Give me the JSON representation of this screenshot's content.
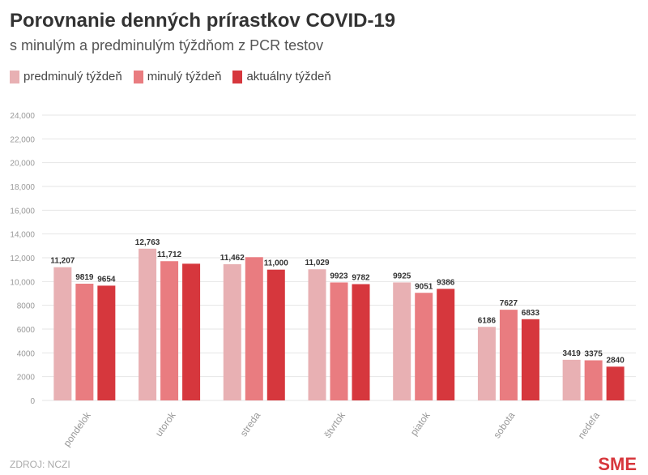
{
  "chart_data": {
    "type": "bar",
    "title": "Porovnanie denných prírastkov COVID-19",
    "subtitle": "s minulým a predminulým týždňom z PCR testov",
    "categories": [
      "pondelok",
      "utorok",
      "streda",
      "štvrtok",
      "piatok",
      "sobota",
      "nedeľa"
    ],
    "series": [
      {
        "name": "predminulý týždeň",
        "color": "#e8b0b3",
        "values": [
          11207,
          12763,
          11462,
          11029,
          9925,
          6186,
          3419
        ],
        "labels": [
          "11,207",
          "12,763",
          "11,462",
          "11,029",
          "9925",
          "6186",
          "3419"
        ]
      },
      {
        "name": "minulý týždeň",
        "color": "#e97c80",
        "values": [
          9819,
          11712,
          12050,
          9923,
          9051,
          7627,
          3375
        ],
        "labels": [
          "9819",
          "11,712",
          "",
          "9923",
          "9051",
          "7627",
          "3375"
        ]
      },
      {
        "name": "aktuálny týždeň",
        "color": "#d6373d",
        "values": [
          9654,
          11500,
          11000,
          9782,
          9386,
          6833,
          2840
        ],
        "labels": [
          "9654",
          "",
          "11,000",
          "9782",
          "9386",
          "6833",
          "2840"
        ]
      }
    ],
    "yticks": [
      "0",
      "2000",
      "4000",
      "6000",
      "8000",
      "10,000",
      "12,000",
      "14,000",
      "16,000",
      "18,000",
      "20,000",
      "22,000",
      "24,000"
    ],
    "ylim": [
      0,
      24000
    ],
    "grid": true,
    "legend": "top-left"
  },
  "source": "ZDROJ: NCZI",
  "logo": "SME"
}
